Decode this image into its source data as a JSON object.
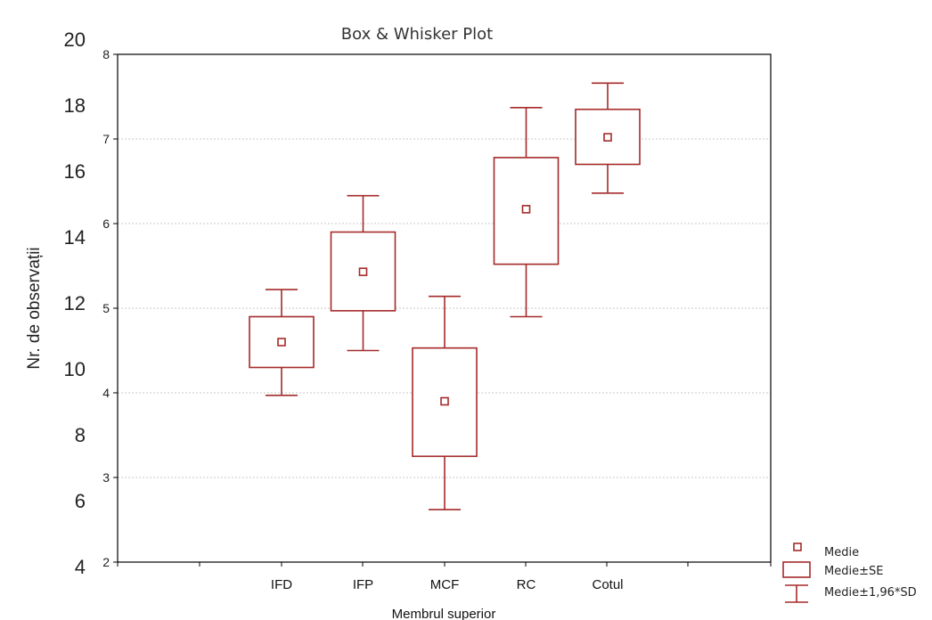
{
  "chart_data": {
    "type": "box",
    "title": "Box & Whisker Plot",
    "xlabel": "Membrul superior",
    "ylabel": "Nr. de observații",
    "ylim": [
      2,
      8
    ],
    "yticks": [
      "2",
      "3",
      "4",
      "5",
      "6",
      "7",
      "8"
    ],
    "outer_yticks": [
      "4",
      "6",
      "8",
      "10",
      "12",
      "14",
      "16",
      "18",
      "20"
    ],
    "grid": "horizontal",
    "legend_position": "bottom-right",
    "color": "#a52a2a",
    "categories": [
      "IFD",
      "IFP",
      "MCF",
      "RC",
      "Cotul"
    ],
    "mean": [
      4.6,
      5.43,
      3.9,
      6.17,
      7.02
    ],
    "se_low": [
      4.3,
      4.97,
      3.25,
      5.52,
      6.7
    ],
    "se_high": [
      4.9,
      5.9,
      4.53,
      6.78,
      7.35
    ],
    "sd_low": [
      3.97,
      4.5,
      2.62,
      4.9,
      6.36
    ],
    "sd_high": [
      5.22,
      6.33,
      5.14,
      7.37,
      7.66
    ],
    "legend": [
      "Medie",
      "Medie±SE",
      "Medie±1,96*SD"
    ]
  }
}
